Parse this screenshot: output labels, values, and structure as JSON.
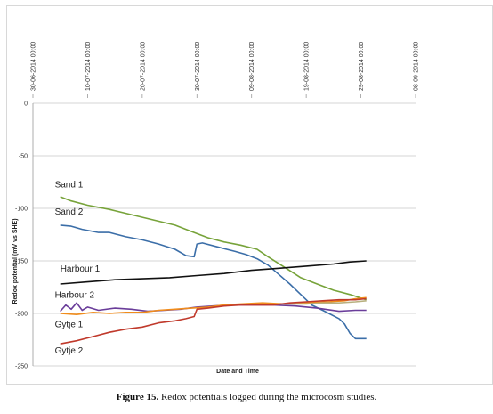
{
  "chart_data": {
    "type": "line",
    "ylabel": "Redox potential (mV vs SHE)",
    "xlabel": "Date and  Time",
    "ylim": [
      -250,
      0
    ],
    "yticks": [
      0,
      -50,
      -100,
      -150,
      -200,
      -250
    ],
    "xlim": [
      0,
      70
    ],
    "xticks": [
      {
        "x": 0,
        "label": "30-06-2014 00:00"
      },
      {
        "x": 10,
        "label": "10-07-2014 00:00"
      },
      {
        "x": 20,
        "label": "20-07-2014 00:00"
      },
      {
        "x": 30,
        "label": "30-07-2014 00:00"
      },
      {
        "x": 40,
        "label": "09-08-2014 00:00"
      },
      {
        "x": 50,
        "label": "19-08-2014 00:00"
      },
      {
        "x": 60,
        "label": "29-08-2014 00:00"
      },
      {
        "x": 70,
        "label": "08-09-2014 00:00"
      }
    ],
    "grid": true,
    "series": [
      {
        "name": "Sand 1",
        "color": "#77a33a",
        "points": [
          [
            5,
            -89
          ],
          [
            7,
            -93
          ],
          [
            10,
            -97
          ],
          [
            14,
            -101
          ],
          [
            18,
            -106
          ],
          [
            22,
            -111
          ],
          [
            26,
            -116
          ],
          [
            29,
            -122
          ],
          [
            32,
            -128
          ],
          [
            35,
            -132
          ],
          [
            38,
            -135
          ],
          [
            41,
            -139
          ],
          [
            43,
            -146
          ],
          [
            46,
            -156
          ],
          [
            49,
            -166
          ],
          [
            52,
            -172
          ],
          [
            55,
            -178
          ],
          [
            58,
            -182
          ],
          [
            61,
            -187
          ]
        ]
      },
      {
        "name": "Sand 2",
        "color": "#3b6ea8",
        "points": [
          [
            5,
            -116
          ],
          [
            7,
            -117
          ],
          [
            9,
            -120
          ],
          [
            12,
            -123
          ],
          [
            14,
            -123
          ],
          [
            17,
            -127
          ],
          [
            20,
            -130
          ],
          [
            23,
            -134
          ],
          [
            26,
            -139
          ],
          [
            28,
            -145
          ],
          [
            29.5,
            -146
          ],
          [
            30,
            -134
          ],
          [
            31,
            -133
          ],
          [
            34,
            -137
          ],
          [
            37,
            -141
          ],
          [
            39,
            -144
          ],
          [
            41,
            -148
          ],
          [
            43,
            -154
          ],
          [
            45,
            -163
          ],
          [
            47,
            -172
          ],
          [
            49,
            -182
          ],
          [
            51,
            -192
          ],
          [
            53,
            -197
          ],
          [
            56,
            -205
          ],
          [
            57,
            -210
          ],
          [
            58,
            -219
          ],
          [
            59,
            -224
          ],
          [
            61,
            -224
          ]
        ]
      },
      {
        "name": "Harbour 1",
        "color": "#111111",
        "points": [
          [
            5,
            -172
          ],
          [
            10,
            -170
          ],
          [
            15,
            -168
          ],
          [
            20,
            -167
          ],
          [
            25,
            -166
          ],
          [
            30,
            -164
          ],
          [
            35,
            -162
          ],
          [
            40,
            -159
          ],
          [
            45,
            -157
          ],
          [
            50,
            -155
          ],
          [
            55,
            -153
          ],
          [
            58,
            -151
          ],
          [
            61,
            -150
          ]
        ]
      },
      {
        "name": "Harbour 2",
        "color": "#6a3d9a",
        "points": [
          [
            5,
            -198
          ],
          [
            6,
            -192
          ],
          [
            7,
            -196
          ],
          [
            8,
            -190
          ],
          [
            9,
            -197
          ],
          [
            10,
            -194
          ],
          [
            12,
            -197
          ],
          [
            15,
            -195
          ],
          [
            18,
            -196
          ],
          [
            21,
            -198
          ],
          [
            24,
            -197
          ],
          [
            27,
            -196
          ],
          [
            30,
            -194
          ],
          [
            33,
            -193
          ],
          [
            36,
            -192
          ],
          [
            40,
            -192
          ],
          [
            44,
            -192
          ],
          [
            48,
            -193
          ],
          [
            52,
            -195
          ],
          [
            56,
            -198
          ],
          [
            59,
            -197
          ],
          [
            61,
            -197
          ]
        ]
      },
      {
        "name": "",
        "color": "#f08c1c",
        "points": [
          [
            5,
            -200
          ],
          [
            8,
            -201
          ],
          [
            11,
            -199
          ],
          [
            14,
            -200
          ],
          [
            17,
            -199
          ],
          [
            20,
            -199
          ],
          [
            23,
            -197
          ],
          [
            26,
            -196
          ],
          [
            29,
            -195
          ],
          [
            32,
            -194
          ],
          [
            35,
            -192
          ],
          [
            38,
            -191
          ],
          [
            42,
            -190
          ],
          [
            46,
            -191
          ],
          [
            50,
            -190
          ],
          [
            54,
            -189
          ],
          [
            57,
            -188
          ],
          [
            59,
            -186
          ],
          [
            61,
            -185
          ]
        ]
      },
      {
        "name": "Gytje 1",
        "color": "#b8b080",
        "points": [
          [
            46,
            -191
          ],
          [
            50,
            -191
          ],
          [
            53,
            -190
          ],
          [
            56,
            -190
          ],
          [
            59,
            -189
          ],
          [
            61,
            -188
          ]
        ]
      },
      {
        "name": "Gytje 2",
        "color": "#c0392b",
        "points": [
          [
            5,
            -229
          ],
          [
            8,
            -226
          ],
          [
            11,
            -222
          ],
          [
            14,
            -218
          ],
          [
            17,
            -215
          ],
          [
            20,
            -213
          ],
          [
            23,
            -209
          ],
          [
            26,
            -207
          ],
          [
            28,
            -205
          ],
          [
            29.5,
            -203
          ],
          [
            30,
            -196
          ],
          [
            32,
            -195
          ],
          [
            35,
            -193
          ],
          [
            38,
            -192
          ],
          [
            41,
            -192
          ],
          [
            44,
            -192
          ],
          [
            47,
            -190
          ],
          [
            50,
            -189
          ],
          [
            53,
            -188
          ],
          [
            56,
            -187
          ],
          [
            59,
            -187
          ],
          [
            61,
            -186
          ]
        ]
      }
    ],
    "labels": [
      {
        "text": "Sand 1",
        "x": 4,
        "y": -80
      },
      {
        "text": "Sand 2",
        "x": 4,
        "y": -106
      },
      {
        "text": "Harbour 1",
        "x": 5,
        "y": -160
      },
      {
        "text": "Harbour 2",
        "x": 4,
        "y": -185
      },
      {
        "text": "Gytje 1",
        "x": 4,
        "y": -213
      },
      {
        "text": "Gytje 2",
        "x": 4,
        "y": -238
      }
    ]
  },
  "caption": {
    "label": "Figure 15.",
    "text": " Redox potentials logged during the microcosm studies."
  }
}
